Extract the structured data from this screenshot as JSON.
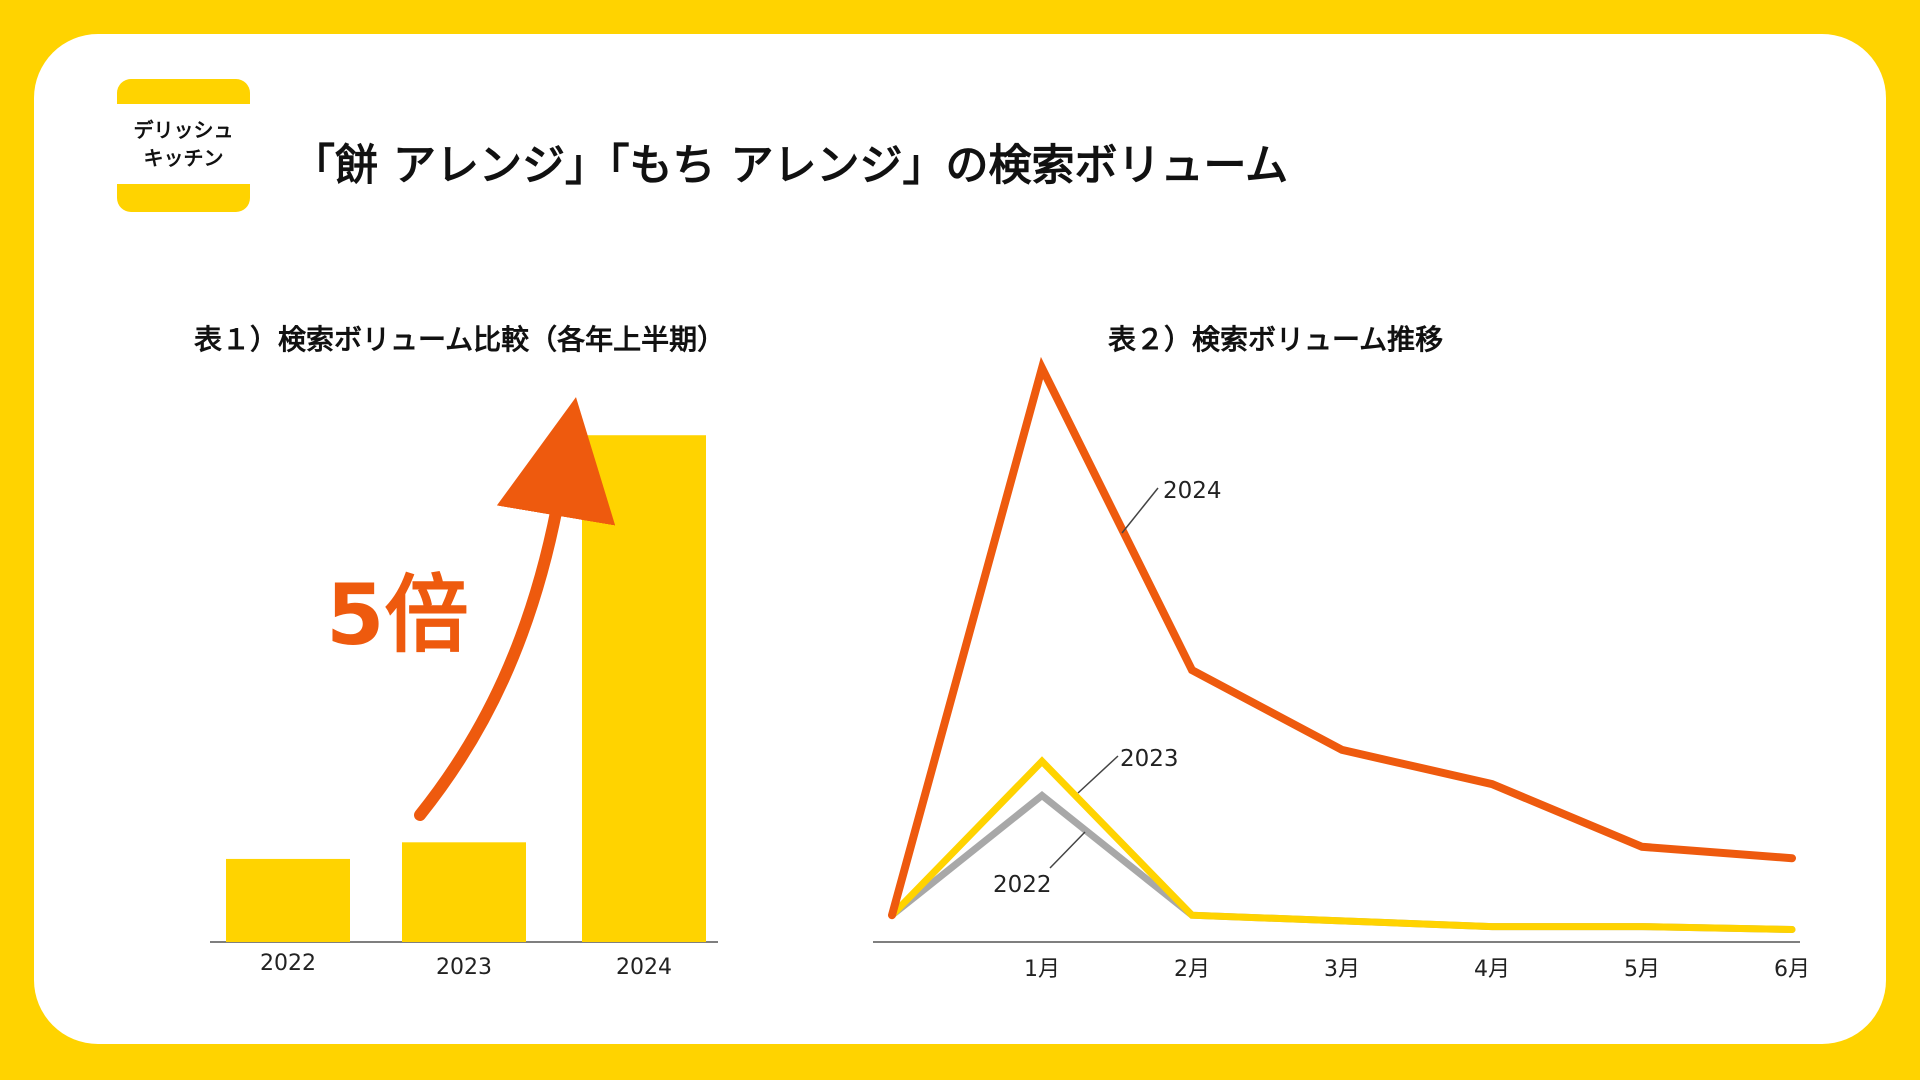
{
  "header": {
    "logo_line1": "デリッシュ",
    "logo_line2": "キッチン",
    "title": "「餅 アレンジ」「もち アレンジ」の検索ボリューム"
  },
  "colors": {
    "background": "#FFD300",
    "bar": "#FFD300",
    "accent": "#EE5A0E",
    "gray": "#A8A8A8"
  },
  "chart_data": [
    {
      "type": "bar",
      "title": "表１）検索ボリューム比較（各年上半期）",
      "categories": [
        "2022",
        "2023",
        "2024"
      ],
      "values": [
        1.0,
        1.2,
        6.1
      ],
      "ylim": [
        0,
        6.5
      ],
      "annotation": "5倍",
      "grid": false
    },
    {
      "type": "line",
      "title": "表２）検索ボリューム推移",
      "x": [
        "",
        "1月",
        "2月",
        "3月",
        "4月",
        "5月",
        "6月"
      ],
      "ylim": [
        0,
        100
      ],
      "grid": false,
      "series": [
        {
          "name": "2024",
          "color": "#EE5A0E",
          "values": [
            4,
            100,
            47,
            33,
            27,
            16,
            14
          ]
        },
        {
          "name": "2023",
          "color": "#FFD300",
          "values": [
            4,
            31,
            4,
            3,
            2,
            2,
            1.5
          ]
        },
        {
          "name": "2022",
          "color": "#A8A8A8",
          "values": [
            4,
            25,
            4,
            3,
            2,
            2,
            1.5
          ]
        }
      ]
    }
  ]
}
